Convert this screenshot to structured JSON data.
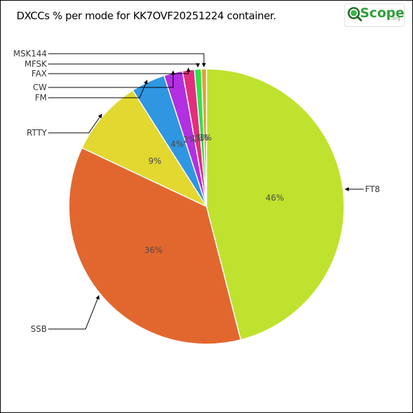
{
  "logo": {
    "q_icon": "magnifier-q-icon",
    "brand": "Scope",
    "suffix": ".org",
    "brand_color": "#2f9e3a"
  },
  "chart_data": {
    "type": "pie",
    "title": "DXCCs % per mode for KK7OVF20251224 container.",
    "slices": [
      {
        "label": "FT8",
        "value": 46,
        "pct_text": "46%",
        "color": "#bfe22e",
        "label_side": "right"
      },
      {
        "label": "SSB",
        "value": 36,
        "pct_text": "36%",
        "color": "#e2672f",
        "label_side": "left"
      },
      {
        "label": "RTTY",
        "value": 9,
        "pct_text": "9%",
        "color": "#e2d82f",
        "label_side": "left"
      },
      {
        "label": "FM",
        "value": 4,
        "pct_text": "4%",
        "color": "#2f96e2",
        "label_side": "left"
      },
      {
        "label": "CW",
        "value": 2.2,
        "pct_text": "2%",
        "color": "#b32fe2",
        "label_side": "left"
      },
      {
        "label": "FAX",
        "value": 1.4,
        "pct_text": "1%",
        "color": "#e22f7c",
        "label_side": "left"
      },
      {
        "label": "MFSK",
        "value": 0.8,
        "pct_text": "1%",
        "color": "#2fe24a",
        "label_side": "left"
      },
      {
        "label": "MSK144",
        "value": 0.6,
        "pct_text": "1%",
        "color": "#e2a22f",
        "label_side": "left"
      }
    ],
    "legend": "none"
  }
}
